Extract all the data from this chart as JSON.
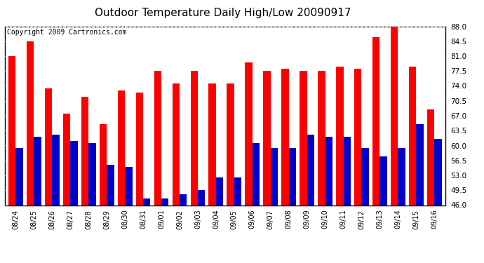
{
  "title": "Outdoor Temperature Daily High/Low 20090917",
  "copyright": "Copyright 2009 Cartronics.com",
  "dates": [
    "08/24",
    "08/25",
    "08/26",
    "08/27",
    "08/28",
    "08/29",
    "08/30",
    "08/31",
    "09/01",
    "09/02",
    "09/03",
    "09/04",
    "09/05",
    "09/06",
    "09/07",
    "09/08",
    "09/09",
    "09/10",
    "09/11",
    "09/12",
    "09/13",
    "09/14",
    "09/15",
    "09/16"
  ],
  "highs": [
    81.0,
    84.5,
    73.5,
    67.5,
    71.5,
    65.0,
    73.0,
    72.5,
    77.5,
    74.5,
    77.5,
    74.5,
    74.5,
    79.5,
    77.5,
    78.0,
    77.5,
    77.5,
    78.5,
    78.0,
    85.5,
    88.0,
    78.5,
    68.5
  ],
  "lows": [
    59.5,
    62.0,
    62.5,
    61.0,
    60.5,
    55.5,
    55.0,
    47.5,
    47.5,
    48.5,
    49.5,
    52.5,
    52.5,
    60.5,
    59.5,
    59.5,
    62.5,
    62.0,
    62.0,
    59.5,
    57.5,
    59.5,
    65.0,
    61.5
  ],
  "ylim": [
    46.0,
    88.0
  ],
  "yticks": [
    46.0,
    49.5,
    53.0,
    56.5,
    60.0,
    63.5,
    67.0,
    70.5,
    74.0,
    77.5,
    81.0,
    84.5,
    88.0
  ],
  "high_color": "#FF0000",
  "low_color": "#0000CC",
  "bg_color": "#FFFFFF",
  "plot_bg_color": "#FFFFFF",
  "title_fontsize": 11,
  "copyright_fontsize": 7,
  "bar_width": 0.4
}
